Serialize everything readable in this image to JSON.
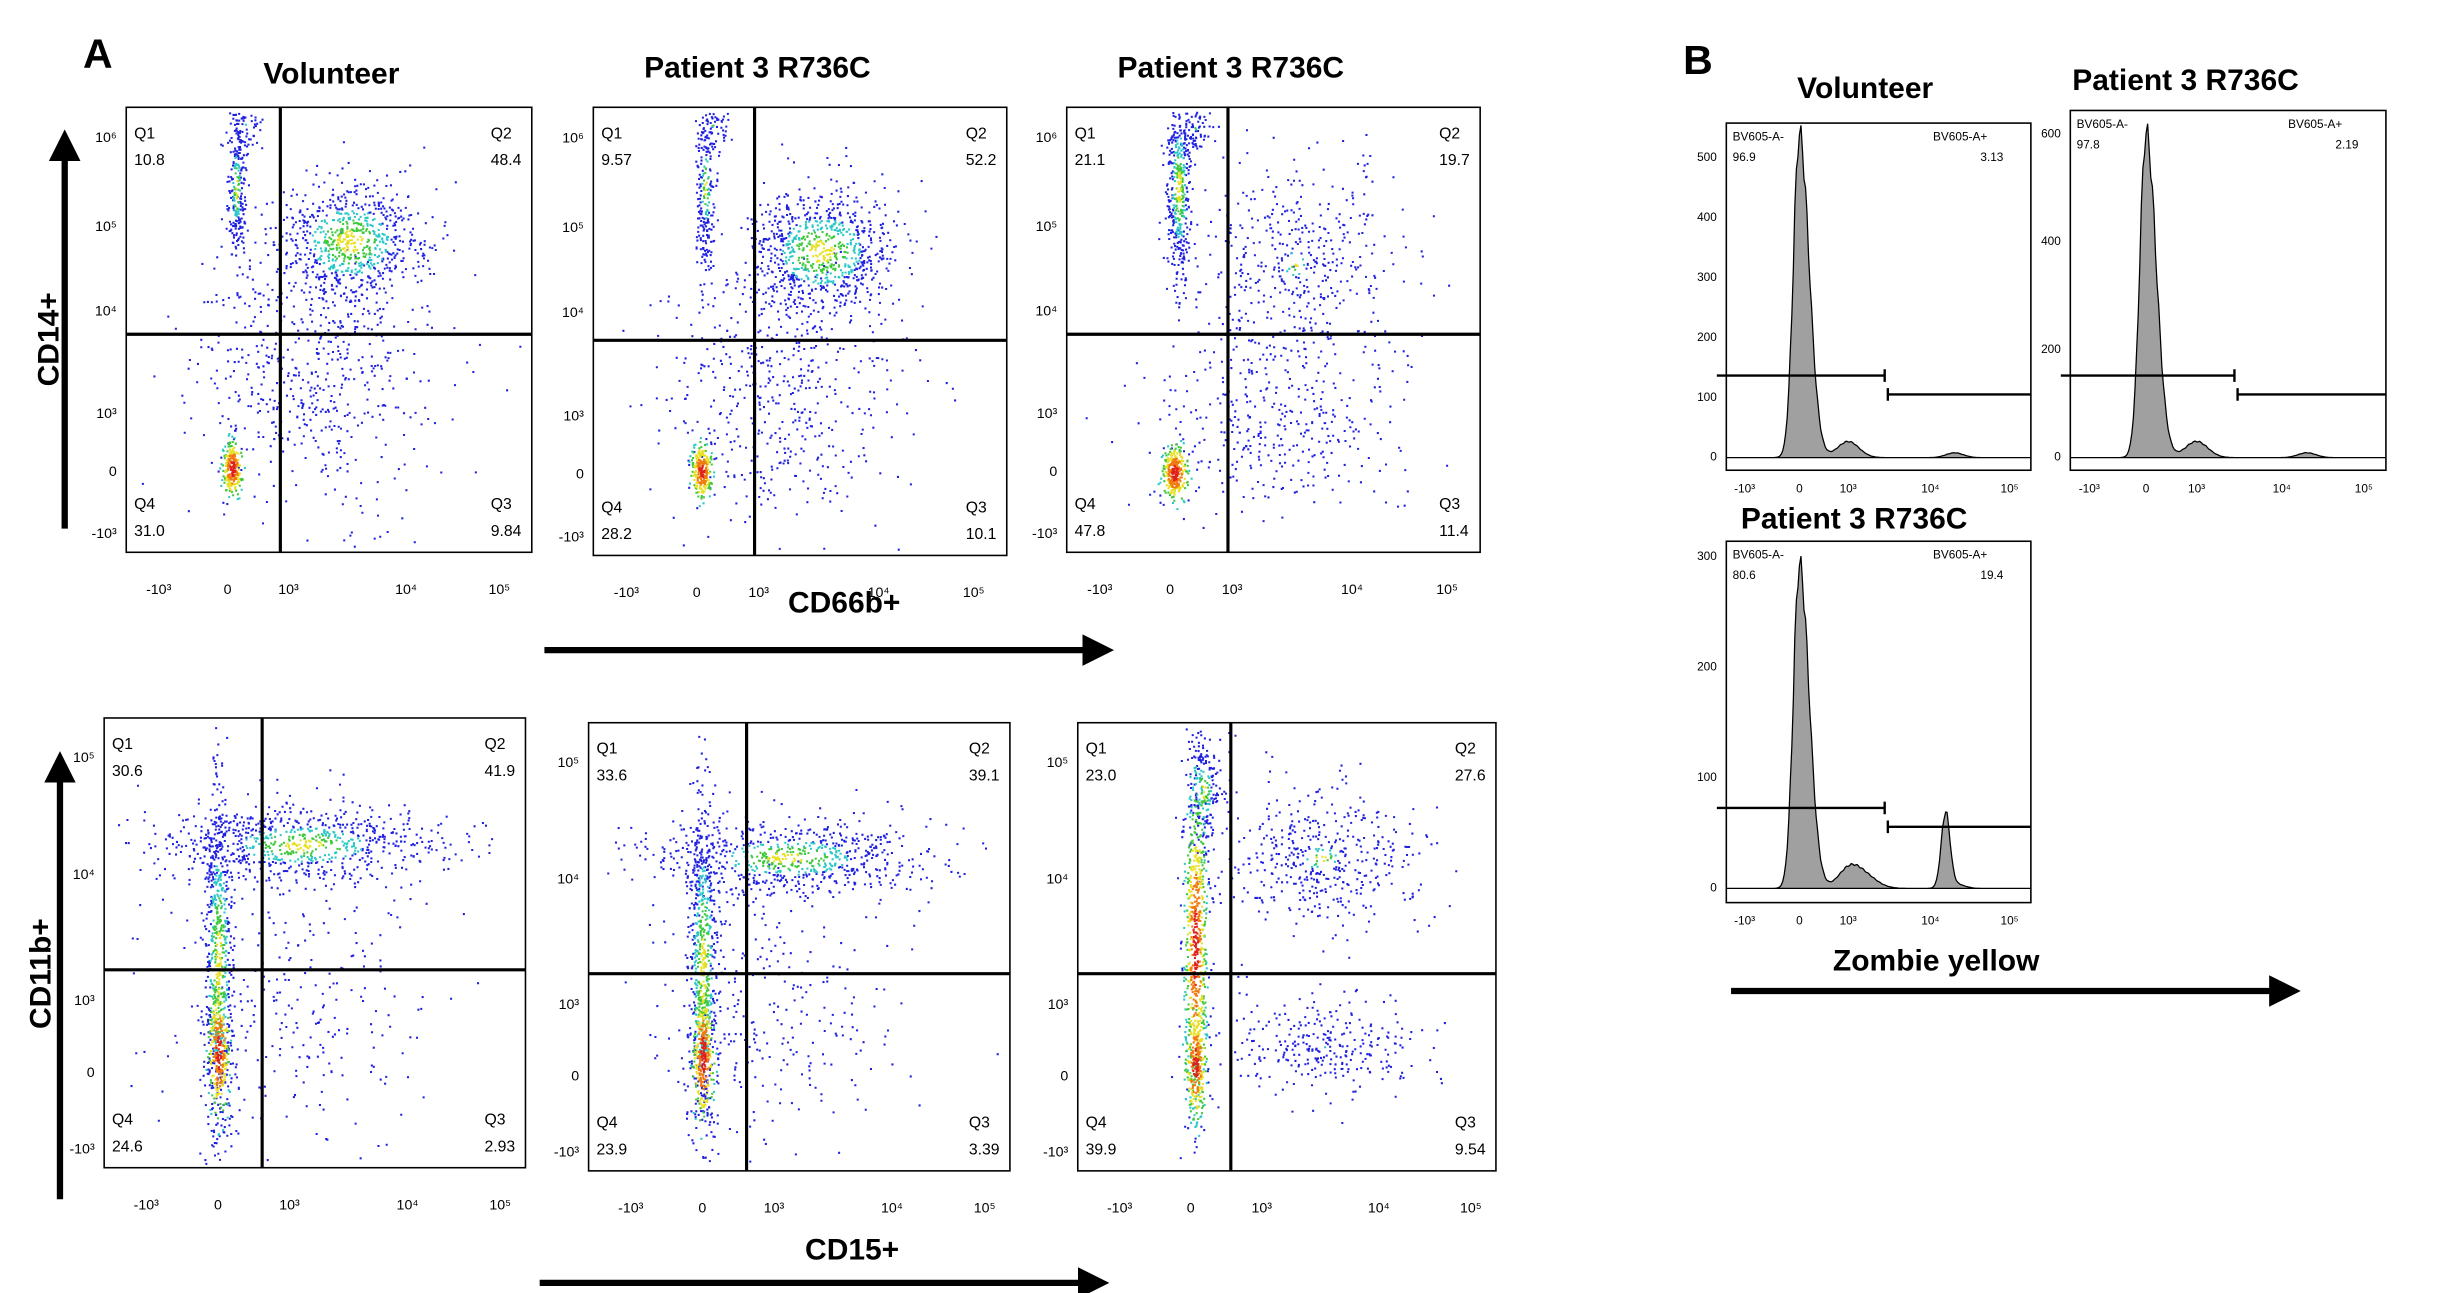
{
  "panel_a": {
    "label": "A",
    "y_axis_top": "CD14+",
    "x_axis_top": "CD66b+",
    "y_axis_bottom": "CD11b+",
    "x_axis_bottom": "CD15+",
    "rows": [
      {
        "y_ticks": [
          "10⁶",
          "10⁵",
          "10⁴",
          "10³",
          "0",
          "-10³"
        ],
        "x_ticks": [
          "-10³",
          "0",
          "10³",
          "10⁴",
          "10⁵"
        ],
        "plots": [
          {
            "title": "Volunteer",
            "quadrants": [
              {
                "name": "Q1",
                "value": "10.8"
              },
              {
                "name": "Q2",
                "value": "48.4"
              },
              {
                "name": "Q3",
                "value": "9.84"
              },
              {
                "name": "Q4",
                "value": "31.0"
              }
            ]
          },
          {
            "title": "Patient 3 R736C",
            "quadrants": [
              {
                "name": "Q1",
                "value": "9.57"
              },
              {
                "name": "Q2",
                "value": "52.2"
              },
              {
                "name": "Q3",
                "value": "10.1"
              },
              {
                "name": "Q4",
                "value": "28.2"
              }
            ]
          },
          {
            "title": "Patient 3 R736C",
            "quadrants": [
              {
                "name": "Q1",
                "value": "21.1"
              },
              {
                "name": "Q2",
                "value": "19.7"
              },
              {
                "name": "Q3",
                "value": "11.4"
              },
              {
                "name": "Q4",
                "value": "47.8"
              }
            ]
          }
        ]
      },
      {
        "y_ticks": [
          "10⁵",
          "10⁴",
          "10³",
          "0",
          "-10³"
        ],
        "x_ticks": [
          "-10³",
          "0",
          "10³",
          "10⁴",
          "10⁵"
        ],
        "plots": [
          {
            "quadrants": [
              {
                "name": "Q1",
                "value": "30.6"
              },
              {
                "name": "Q2",
                "value": "41.9"
              },
              {
                "name": "Q3",
                "value": "2.93"
              },
              {
                "name": "Q4",
                "value": "24.6"
              }
            ]
          },
          {
            "quadrants": [
              {
                "name": "Q1",
                "value": "33.6"
              },
              {
                "name": "Q2",
                "value": "39.1"
              },
              {
                "name": "Q3",
                "value": "3.39"
              },
              {
                "name": "Q4",
                "value": "23.9"
              }
            ]
          },
          {
            "quadrants": [
              {
                "name": "Q1",
                "value": "23.0"
              },
              {
                "name": "Q2",
                "value": "27.6"
              },
              {
                "name": "Q3",
                "value": "9.54"
              },
              {
                "name": "Q4",
                "value": "39.9"
              }
            ]
          }
        ]
      }
    ]
  },
  "panel_b": {
    "label": "B",
    "x_axis": "Zombie yellow",
    "x_ticks": [
      "-10³",
      "0",
      "10³",
      "10⁴",
      "10⁵"
    ],
    "plots": [
      {
        "title": "Volunteer",
        "y_ticks": [
          "0",
          "100",
          "200",
          "300",
          "400",
          "500"
        ],
        "gates": [
          {
            "name": "BV605-A-",
            "value": "96.9"
          },
          {
            "name": "BV605-A+",
            "value": "3.13"
          }
        ]
      },
      {
        "title": "Patient 3 R736C",
        "y_ticks": [
          "0",
          "200",
          "400",
          "600"
        ],
        "gates": [
          {
            "name": "BV605-A-",
            "value": "97.8"
          },
          {
            "name": "BV605-A+",
            "value": "2.19"
          }
        ]
      },
      {
        "title": "Patient 3 R736C",
        "y_ticks": [
          "0",
          "100",
          "200",
          "300"
        ],
        "gates": [
          {
            "name": "BV605-A-",
            "value": "80.6"
          },
          {
            "name": "BV605-A+",
            "value": "19.4"
          }
        ]
      }
    ]
  }
}
